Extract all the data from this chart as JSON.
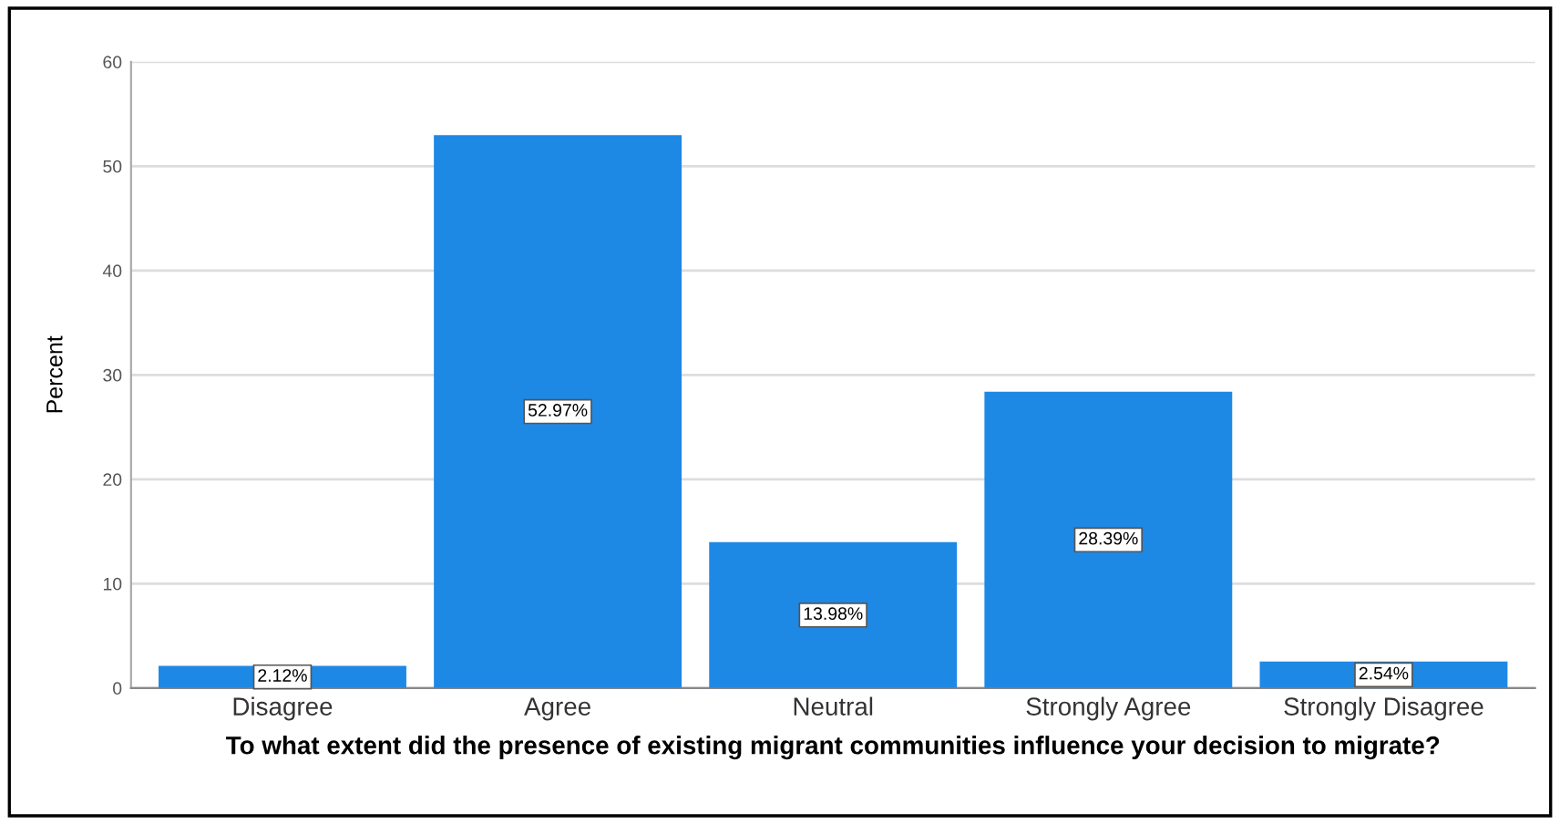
{
  "chart_data": {
    "type": "bar",
    "xlabel": "To what extent did the presence of existing migrant communities influence your decision to migrate?",
    "ylabel": "Percent",
    "categories": [
      "Disagree",
      "Agree",
      "Neutral",
      "Strongly Agree",
      "Strongly Disagree"
    ],
    "values": [
      2.12,
      52.97,
      13.98,
      28.39,
      2.54
    ],
    "value_labels": [
      "2.12%",
      "52.97%",
      "13.98%",
      "28.39%",
      "2.54%"
    ],
    "color": "#1e88e5",
    "ylim": [
      0,
      60
    ],
    "yticks": [
      0,
      10,
      20,
      30,
      40,
      50,
      60
    ],
    "grid": "y",
    "legend": false
  }
}
